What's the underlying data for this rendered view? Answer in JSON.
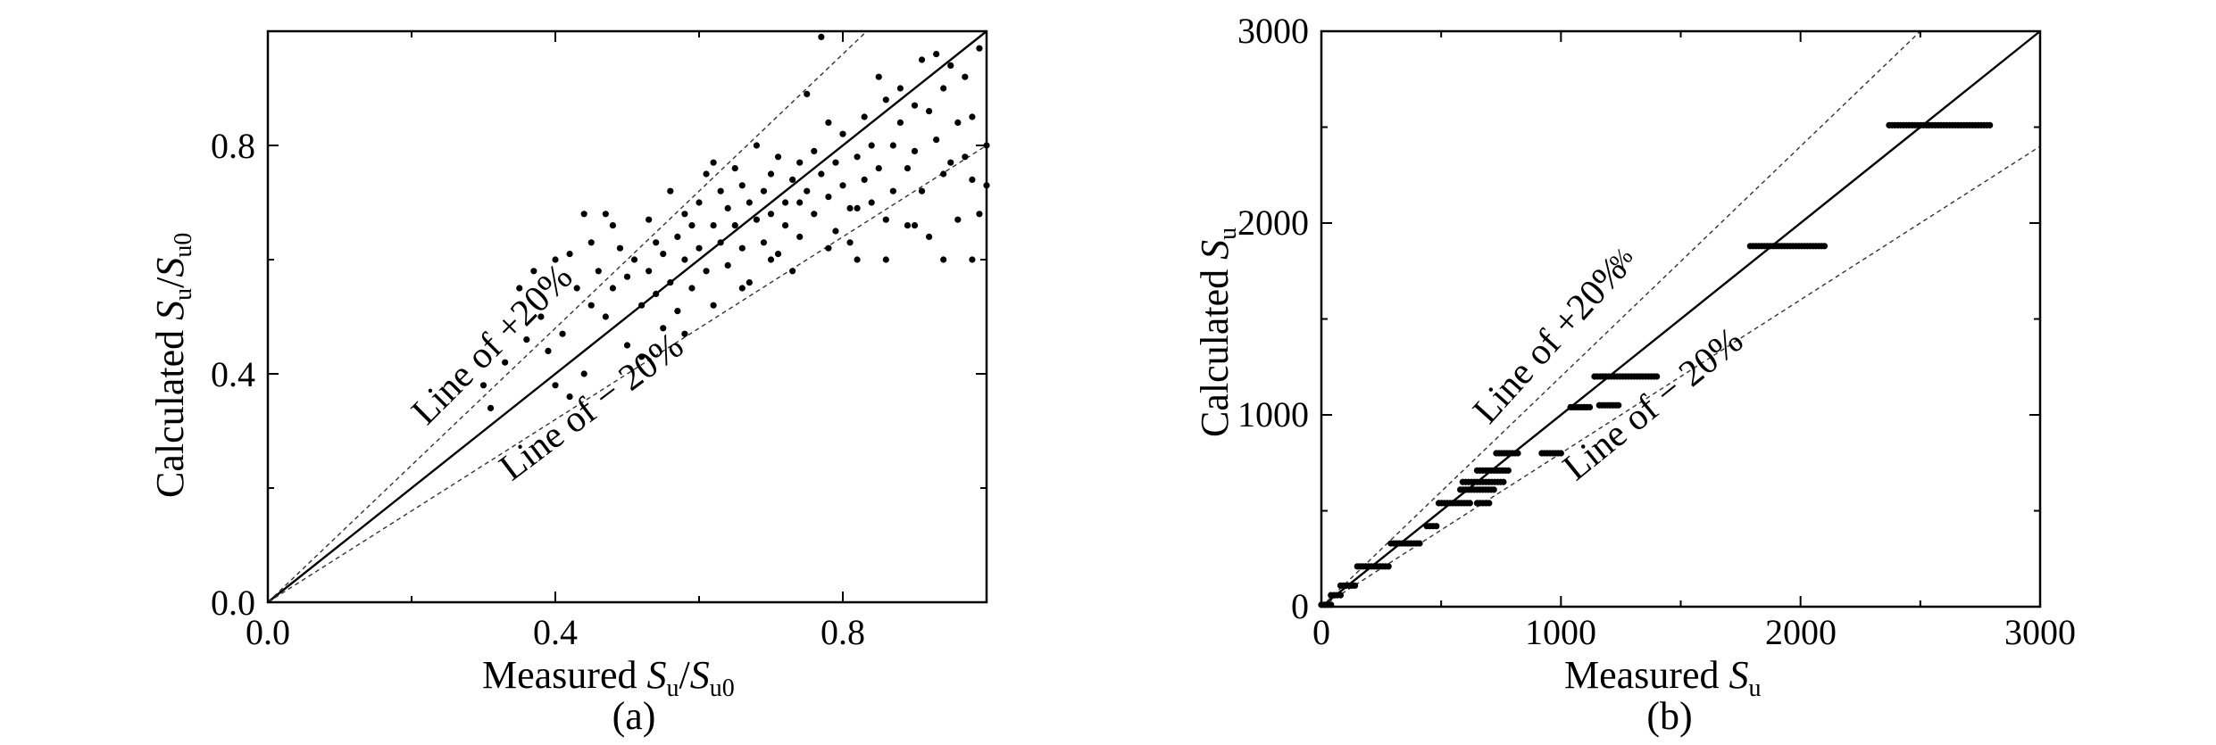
{
  "chart_data": [
    {
      "type": "scatter",
      "panel_caption": "(a)",
      "xlabel": {
        "main": "Measured ",
        "var1": "S",
        "sub1": "u",
        "slash": "/",
        "var2": "S",
        "sub2": "u0"
      },
      "ylabel": {
        "main": "Calculated ",
        "var1": "S",
        "sub1": "u",
        "slash": "/",
        "var2": "S",
        "sub2": "u0"
      },
      "xlim": [
        0,
        1.0
      ],
      "ylim": [
        0,
        1.0
      ],
      "xticks": [
        0.0,
        0.4,
        0.8
      ],
      "yticks": [
        0.0,
        0.4,
        0.8
      ],
      "xtick_labels": [
        "0.0",
        "0.4",
        "0.8"
      ],
      "ytick_labels": [
        "0.0",
        "0.4",
        "0.8"
      ],
      "grid": false,
      "lines": [
        {
          "name": "1:1",
          "slope": 1.0,
          "style": "solid"
        },
        {
          "name": "Line of +20%",
          "slope": 1.2,
          "style": "dashed"
        },
        {
          "name": "Line of − 20%",
          "slope": 0.8,
          "style": "dashed"
        }
      ],
      "annotations": {
        "plus": "Line of +20%",
        "minus": "Line of − 20%"
      },
      "points": [
        [
          0.3,
          0.38
        ],
        [
          0.31,
          0.34
        ],
        [
          0.33,
          0.42
        ],
        [
          0.35,
          0.55
        ],
        [
          0.36,
          0.46
        ],
        [
          0.37,
          0.58
        ],
        [
          0.38,
          0.5
        ],
        [
          0.39,
          0.44
        ],
        [
          0.4,
          0.6
        ],
        [
          0.4,
          0.38
        ],
        [
          0.41,
          0.47
        ],
        [
          0.42,
          0.61
        ],
        [
          0.42,
          0.36
        ],
        [
          0.43,
          0.55
        ],
        [
          0.44,
          0.68
        ],
        [
          0.44,
          0.4
        ],
        [
          0.45,
          0.63
        ],
        [
          0.45,
          0.52
        ],
        [
          0.46,
          0.58
        ],
        [
          0.47,
          0.68
        ],
        [
          0.47,
          0.5
        ],
        [
          0.48,
          0.66
        ],
        [
          0.48,
          0.55
        ],
        [
          0.49,
          0.62
        ],
        [
          0.5,
          0.57
        ],
        [
          0.5,
          0.45
        ],
        [
          0.51,
          0.6
        ],
        [
          0.52,
          0.52
        ],
        [
          0.53,
          0.67
        ],
        [
          0.53,
          0.58
        ],
        [
          0.54,
          0.63
        ],
        [
          0.55,
          0.61
        ],
        [
          0.55,
          0.48
        ],
        [
          0.56,
          0.72
        ],
        [
          0.56,
          0.56
        ],
        [
          0.57,
          0.64
        ],
        [
          0.57,
          0.51
        ],
        [
          0.58,
          0.6
        ],
        [
          0.58,
          0.68
        ],
        [
          0.59,
          0.55
        ],
        [
          0.6,
          0.7
        ],
        [
          0.6,
          0.62
        ],
        [
          0.61,
          0.75
        ],
        [
          0.61,
          0.58
        ],
        [
          0.62,
          0.66
        ],
        [
          0.62,
          0.52
        ],
        [
          0.63,
          0.72
        ],
        [
          0.63,
          0.63
        ],
        [
          0.64,
          0.69
        ],
        [
          0.64,
          0.59
        ],
        [
          0.65,
          0.76
        ],
        [
          0.65,
          0.66
        ],
        [
          0.66,
          0.62
        ],
        [
          0.66,
          0.73
        ],
        [
          0.67,
          0.7
        ],
        [
          0.67,
          0.56
        ],
        [
          0.68,
          0.8
        ],
        [
          0.68,
          0.67
        ],
        [
          0.69,
          0.72
        ],
        [
          0.69,
          0.63
        ],
        [
          0.7,
          0.75
        ],
        [
          0.7,
          0.68
        ],
        [
          0.71,
          0.61
        ],
        [
          0.71,
          0.78
        ],
        [
          0.72,
          0.7
        ],
        [
          0.72,
          0.66
        ],
        [
          0.73,
          0.74
        ],
        [
          0.73,
          0.58
        ],
        [
          0.74,
          0.77
        ],
        [
          0.74,
          0.64
        ],
        [
          0.75,
          0.72
        ],
        [
          0.75,
          0.89
        ],
        [
          0.76,
          0.68
        ],
        [
          0.76,
          0.79
        ],
        [
          0.77,
          0.75
        ],
        [
          0.77,
          0.99
        ],
        [
          0.78,
          0.71
        ],
        [
          0.78,
          0.84
        ],
        [
          0.79,
          0.65
        ],
        [
          0.79,
          0.77
        ],
        [
          0.8,
          0.82
        ],
        [
          0.8,
          0.73
        ],
        [
          0.81,
          0.69
        ],
        [
          0.81,
          0.63
        ],
        [
          0.82,
          0.78
        ],
        [
          0.82,
          0.6
        ],
        [
          0.83,
          0.85
        ],
        [
          0.83,
          0.74
        ],
        [
          0.84,
          0.8
        ],
        [
          0.84,
          0.7
        ],
        [
          0.85,
          0.92
        ],
        [
          0.85,
          0.76
        ],
        [
          0.86,
          0.67
        ],
        [
          0.86,
          0.88
        ],
        [
          0.87,
          0.8
        ],
        [
          0.87,
          0.72
        ],
        [
          0.88,
          0.9
        ],
        [
          0.88,
          0.84
        ],
        [
          0.89,
          0.76
        ],
        [
          0.89,
          0.66
        ],
        [
          0.9,
          0.87
        ],
        [
          0.9,
          0.79
        ],
        [
          0.91,
          0.95
        ],
        [
          0.91,
          0.72
        ],
        [
          0.92,
          0.86
        ],
        [
          0.92,
          0.64
        ],
        [
          0.93,
          0.96
        ],
        [
          0.93,
          0.81
        ],
        [
          0.94,
          0.9
        ],
        [
          0.94,
          0.75
        ],
        [
          0.95,
          0.94
        ],
        [
          0.95,
          0.77
        ],
        [
          0.96,
          0.84
        ],
        [
          0.96,
          0.67
        ],
        [
          0.97,
          0.78
        ],
        [
          0.97,
          0.92
        ],
        [
          0.98,
          0.85
        ],
        [
          0.98,
          0.74
        ],
        [
          0.99,
          0.97
        ],
        [
          0.99,
          0.68
        ],
        [
          1.0,
          0.8
        ],
        [
          1.0,
          0.73
        ],
        [
          0.52,
          0.43
        ],
        [
          0.58,
          0.47
        ],
        [
          0.62,
          0.77
        ],
        [
          0.66,
          0.55
        ],
        [
          0.7,
          0.6
        ],
        [
          0.74,
          0.7
        ],
        [
          0.78,
          0.62
        ],
        [
          0.82,
          0.69
        ],
        [
          0.86,
          0.6
        ],
        [
          0.9,
          0.66
        ],
        [
          0.94,
          0.6
        ],
        [
          0.98,
          0.6
        ],
        [
          0.54,
          0.54
        ],
        [
          0.59,
          0.66
        ]
      ]
    },
    {
      "type": "scatter",
      "panel_caption": "(b)",
      "xlabel": {
        "main": "Measured ",
        "var1": "S",
        "sub1": "u"
      },
      "ylabel": {
        "main": "Calculated ",
        "var1": "S",
        "sub1": "u"
      },
      "xlim": [
        0,
        3000
      ],
      "ylim": [
        0,
        3000
      ],
      "xticks": [
        0,
        1000,
        2000,
        3000
      ],
      "yticks": [
        0,
        1000,
        2000,
        3000
      ],
      "xtick_labels": [
        "0",
        "1000",
        "2000",
        "3000"
      ],
      "ytick_labels": [
        "0",
        "1000",
        "2000",
        "3000"
      ],
      "grid": false,
      "lines": [
        {
          "name": "1:1",
          "slope": 1.0,
          "style": "solid"
        },
        {
          "name": "Line of +20%",
          "slope": 1.2,
          "style": "dashed"
        },
        {
          "name": "Line of − 20%",
          "slope": 0.8,
          "style": "dashed"
        }
      ],
      "annotations": {
        "plus": "Line of +20%",
        "plus_suffix": "%",
        "minus": "Line of − 20%"
      },
      "point_groups": [
        {
          "y": 10,
          "x_from": 0,
          "x_to": 40
        },
        {
          "y": 60,
          "x_from": 40,
          "x_to": 80
        },
        {
          "y": 110,
          "x_from": 80,
          "x_to": 140
        },
        {
          "y": 210,
          "x_from": 150,
          "x_to": 280
        },
        {
          "y": 330,
          "x_from": 290,
          "x_to": 410
        },
        {
          "y": 420,
          "x_from": 440,
          "x_to": 480
        },
        {
          "y": 540,
          "x_from": 490,
          "x_to": 620
        },
        {
          "y": 540,
          "x_from": 650,
          "x_to": 700
        },
        {
          "y": 610,
          "x_from": 580,
          "x_to": 720
        },
        {
          "y": 650,
          "x_from": 590,
          "x_to": 760
        },
        {
          "y": 710,
          "x_from": 650,
          "x_to": 780
        },
        {
          "y": 800,
          "x_from": 730,
          "x_to": 820
        },
        {
          "y": 800,
          "x_from": 920,
          "x_to": 1000
        },
        {
          "y": 1040,
          "x_from": 1040,
          "x_to": 1120
        },
        {
          "y": 1050,
          "x_from": 1160,
          "x_to": 1240
        },
        {
          "y": 1200,
          "x_from": 1140,
          "x_to": 1400
        },
        {
          "y": 1880,
          "x_from": 1790,
          "x_to": 2100
        },
        {
          "y": 2510,
          "x_from": 2370,
          "x_to": 2790
        }
      ]
    }
  ]
}
